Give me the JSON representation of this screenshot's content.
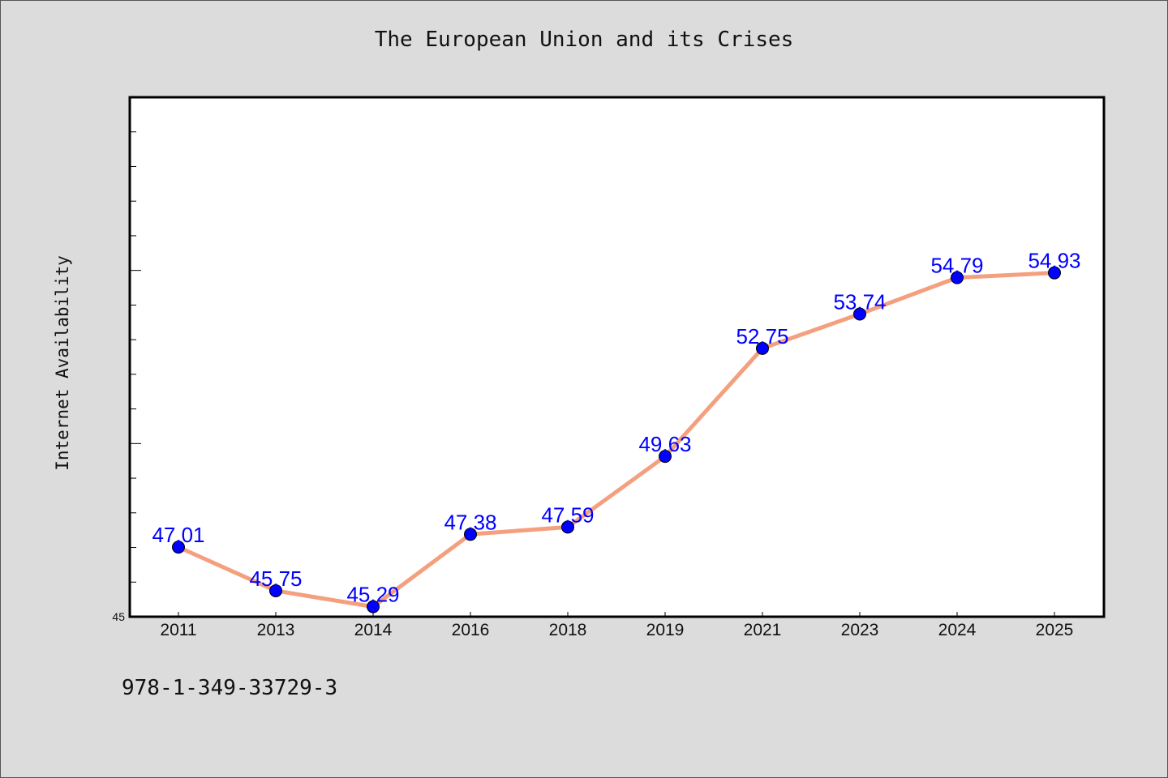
{
  "chart_data": {
    "type": "line",
    "title": "The European Union and its Crises",
    "xlabel": "",
    "ylabel": "Internet Availability",
    "categories": [
      "2011",
      "2013",
      "2014",
      "2016",
      "2018",
      "2019",
      "2021",
      "2023",
      "2024",
      "2025"
    ],
    "series": [
      {
        "values": [
          47.01,
          45.75,
          45.29,
          47.38,
          47.59,
          49.63,
          52.75,
          53.74,
          54.79,
          54.93
        ],
        "labels": [
          "47.01",
          "45.75",
          "45.29",
          "47.38",
          "47.59",
          "49.63",
          "52.75",
          "53.74",
          "54.79",
          "54.93"
        ]
      }
    ],
    "ylim": [
      45,
      60
    ],
    "yticks_labeled": [
      "45"
    ],
    "grid": false,
    "legend": "none",
    "colors": {
      "line": "#f4a07f",
      "marker": "#0000ff",
      "data_label": "#0000ff",
      "background": "#dcdcdc",
      "plot_area": "#ffffff"
    }
  },
  "footer_text": "978-1-349-33729-3"
}
